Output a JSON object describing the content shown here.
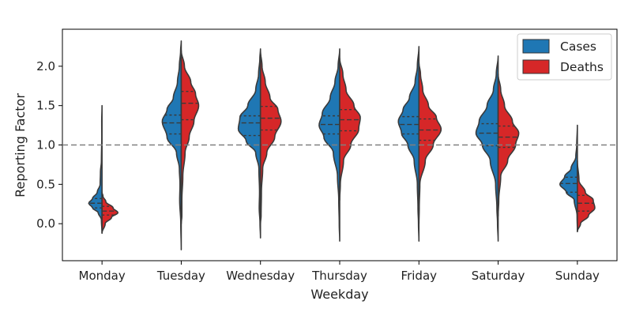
{
  "chart_data": {
    "type": "violin",
    "split": true,
    "xlabel": "Weekday",
    "ylabel": "Reporting Factor",
    "categories": [
      "Monday",
      "Tuesday",
      "Wednesday",
      "Thursday",
      "Friday",
      "Saturday",
      "Sunday"
    ],
    "ylim": [
      -0.47,
      2.47
    ],
    "yticks": [
      0.0,
      0.5,
      1.0,
      1.5,
      2.0
    ],
    "ytick_labels": [
      "0.0",
      "0.5",
      "1.0",
      "1.5",
      "2.0"
    ],
    "reference_line": {
      "y": 1.0,
      "style": "dashed",
      "color": "#808080"
    },
    "legend": {
      "position": "top-right",
      "entries": [
        "Cases",
        "Deaths"
      ]
    },
    "series": [
      {
        "name": "Cases",
        "color": "#1f77b4",
        "side": "left",
        "violins": [
          {
            "range": [
              -0.12,
              1.5
            ],
            "profile": [
              [
                -0.12,
                0.0
              ],
              [
                0.05,
                0.02
              ],
              [
                0.14,
                0.12
              ],
              [
                0.2,
                0.3
              ],
              [
                0.26,
                0.42
              ],
              [
                0.32,
                0.3
              ],
              [
                0.4,
                0.15
              ],
              [
                0.5,
                0.06
              ],
              [
                0.65,
                0.05
              ],
              [
                0.8,
                0.02
              ],
              [
                1.1,
                0.008
              ],
              [
                1.3,
                0.01
              ],
              [
                1.5,
                0.0
              ]
            ],
            "quartiles": [
              0.2,
              0.26,
              0.32
            ]
          },
          {
            "range": [
              -0.33,
              2.32
            ],
            "profile": [
              [
                -0.33,
                0.0
              ],
              [
                0.0,
                0.015
              ],
              [
                0.3,
                0.05
              ],
              [
                0.5,
                0.04
              ],
              [
                0.7,
                0.06
              ],
              [
                0.9,
                0.15
              ],
              [
                1.1,
                0.45
              ],
              [
                1.3,
                0.6
              ],
              [
                1.45,
                0.45
              ],
              [
                1.6,
                0.25
              ],
              [
                1.8,
                0.12
              ],
              [
                2.0,
                0.06
              ],
              [
                2.2,
                0.02
              ],
              [
                2.32,
                0.0
              ]
            ],
            "quartiles": [
              1.14,
              1.28,
              1.38
            ]
          },
          {
            "range": [
              -0.18,
              2.22
            ],
            "profile": [
              [
                -0.18,
                0.0
              ],
              [
                0.0,
                0.015
              ],
              [
                0.2,
                0.04
              ],
              [
                0.4,
                0.03
              ],
              [
                0.7,
                0.05
              ],
              [
                0.9,
                0.15
              ],
              [
                1.05,
                0.45
              ],
              [
                1.2,
                0.7
              ],
              [
                1.35,
                0.65
              ],
              [
                1.5,
                0.4
              ],
              [
                1.7,
                0.15
              ],
              [
                1.9,
                0.06
              ],
              [
                2.1,
                0.02
              ],
              [
                2.22,
                0.0
              ]
            ],
            "quartiles": [
              1.12,
              1.28,
              1.37
            ]
          },
          {
            "range": [
              -0.22,
              2.22
            ],
            "profile": [
              [
                -0.22,
                0.0
              ],
              [
                0.0,
                0.015
              ],
              [
                0.3,
                0.03
              ],
              [
                0.6,
                0.07
              ],
              [
                0.9,
                0.2
              ],
              [
                1.1,
                0.5
              ],
              [
                1.25,
                0.65
              ],
              [
                1.4,
                0.55
              ],
              [
                1.6,
                0.3
              ],
              [
                1.8,
                0.15
              ],
              [
                2.0,
                0.05
              ],
              [
                2.22,
                0.0
              ]
            ],
            "quartiles": [
              1.14,
              1.26,
              1.37
            ]
          },
          {
            "range": [
              -0.22,
              2.25
            ],
            "profile": [
              [
                -0.22,
                0.0
              ],
              [
                0.0,
                0.015
              ],
              [
                0.2,
                0.03
              ],
              [
                0.5,
                0.05
              ],
              [
                0.8,
                0.15
              ],
              [
                1.0,
                0.35
              ],
              [
                1.15,
                0.55
              ],
              [
                1.3,
                0.65
              ],
              [
                1.45,
                0.5
              ],
              [
                1.6,
                0.3
              ],
              [
                1.8,
                0.12
              ],
              [
                2.0,
                0.05
              ],
              [
                2.25,
                0.0
              ]
            ],
            "quartiles": [
              1.14,
              1.26,
              1.36
            ]
          },
          {
            "range": [
              -0.22,
              2.13
            ],
            "profile": [
              [
                -0.22,
                0.0
              ],
              [
                0.0,
                0.02
              ],
              [
                0.2,
                0.04
              ],
              [
                0.5,
                0.08
              ],
              [
                0.8,
                0.25
              ],
              [
                1.0,
                0.5
              ],
              [
                1.15,
                0.7
              ],
              [
                1.3,
                0.6
              ],
              [
                1.5,
                0.35
              ],
              [
                1.7,
                0.15
              ],
              [
                1.9,
                0.06
              ],
              [
                2.13,
                0.0
              ]
            ],
            "quartiles": [
              0.99,
              1.15,
              1.27
            ]
          },
          {
            "range": [
              -0.1,
              1.25
            ],
            "profile": [
              [
                -0.1,
                0.0
              ],
              [
                0.1,
                0.01
              ],
              [
                0.3,
                0.1
              ],
              [
                0.4,
                0.35
              ],
              [
                0.5,
                0.55
              ],
              [
                0.6,
                0.4
              ],
              [
                0.7,
                0.2
              ],
              [
                0.85,
                0.05
              ],
              [
                1.0,
                0.02
              ],
              [
                1.25,
                0.0
              ]
            ],
            "quartiles": [
              0.4,
              0.51,
              0.59
            ]
          }
        ]
      },
      {
        "name": "Deaths",
        "color": "#d62728",
        "side": "right",
        "violins": [
          {
            "range": [
              -0.12,
              0.4
            ],
            "profile": [
              [
                -0.12,
                0.0
              ],
              [
                0.0,
                0.1
              ],
              [
                0.08,
                0.3
              ],
              [
                0.14,
                0.5
              ],
              [
                0.2,
                0.35
              ],
              [
                0.28,
                0.12
              ],
              [
                0.35,
                0.03
              ],
              [
                0.4,
                0.0
              ]
            ],
            "quartiles": [
              0.11,
              0.16,
              0.22
            ]
          },
          {
            "range": [
              0.0,
              2.2
            ],
            "profile": [
              [
                0.0,
                0.0
              ],
              [
                0.1,
                0.02
              ],
              [
                0.3,
                0.02
              ],
              [
                0.6,
                0.05
              ],
              [
                0.9,
                0.12
              ],
              [
                1.1,
                0.25
              ],
              [
                1.3,
                0.4
              ],
              [
                1.5,
                0.55
              ],
              [
                1.65,
                0.45
              ],
              [
                1.8,
                0.3
              ],
              [
                2.0,
                0.1
              ],
              [
                2.2,
                0.0
              ]
            ],
            "quartiles": [
              1.32,
              1.53,
              1.68
            ]
          },
          {
            "range": [
              0.0,
              2.2
            ],
            "profile": [
              [
                0.0,
                0.0
              ],
              [
                0.1,
                0.02
              ],
              [
                0.4,
                0.03
              ],
              [
                0.7,
                0.07
              ],
              [
                0.9,
                0.2
              ],
              [
                1.1,
                0.45
              ],
              [
                1.3,
                0.65
              ],
              [
                1.45,
                0.55
              ],
              [
                1.6,
                0.3
              ],
              [
                1.8,
                0.15
              ],
              [
                2.0,
                0.05
              ],
              [
                2.2,
                0.0
              ]
            ],
            "quartiles": [
              1.19,
              1.34,
              1.49
            ]
          },
          {
            "range": [
              0.3,
              2.1
            ],
            "profile": [
              [
                0.3,
                0.0
              ],
              [
                0.5,
                0.02
              ],
              [
                0.8,
                0.12
              ],
              [
                1.0,
                0.35
              ],
              [
                1.2,
                0.6
              ],
              [
                1.35,
                0.65
              ],
              [
                1.5,
                0.45
              ],
              [
                1.7,
                0.2
              ],
              [
                1.9,
                0.1
              ],
              [
                2.1,
                0.0
              ]
            ],
            "quartiles": [
              1.18,
              1.32,
              1.45
            ]
          },
          {
            "range": [
              0.0,
              2.05
            ],
            "profile": [
              [
                0.0,
                0.0
              ],
              [
                0.2,
                0.01
              ],
              [
                0.5,
                0.03
              ],
              [
                0.8,
                0.2
              ],
              [
                1.0,
                0.45
              ],
              [
                1.2,
                0.7
              ],
              [
                1.35,
                0.55
              ],
              [
                1.5,
                0.3
              ],
              [
                1.7,
                0.12
              ],
              [
                1.9,
                0.05
              ],
              [
                2.05,
                0.0
              ]
            ],
            "quartiles": [
              1.06,
              1.19,
              1.33
            ]
          },
          {
            "range": [
              0.1,
              1.9
            ],
            "profile": [
              [
                0.1,
                0.0
              ],
              [
                0.3,
                0.02
              ],
              [
                0.6,
                0.08
              ],
              [
                0.8,
                0.3
              ],
              [
                1.0,
                0.55
              ],
              [
                1.15,
                0.65
              ],
              [
                1.3,
                0.45
              ],
              [
                1.5,
                0.2
              ],
              [
                1.7,
                0.08
              ],
              [
                1.9,
                0.0
              ]
            ],
            "quartiles": [
              0.97,
              1.1,
              1.24
            ]
          },
          {
            "range": [
              -0.1,
              0.8
            ],
            "profile": [
              [
                -0.1,
                0.0
              ],
              [
                0.0,
                0.1
              ],
              [
                0.1,
                0.35
              ],
              [
                0.2,
                0.55
              ],
              [
                0.3,
                0.5
              ],
              [
                0.4,
                0.25
              ],
              [
                0.55,
                0.05
              ],
              [
                0.8,
                0.0
              ]
            ],
            "quartiles": [
              0.16,
              0.26,
              0.36
            ]
          }
        ]
      }
    ]
  }
}
